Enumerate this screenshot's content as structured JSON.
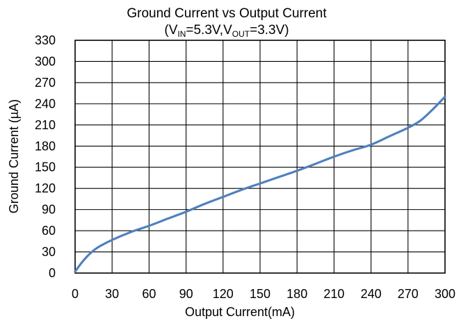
{
  "chart_data": {
    "type": "line",
    "title": "Ground Current vs Output Current",
    "subtitle": {
      "open": "(V",
      "vin_sub": "IN",
      "mid": "=5.3V,V",
      "vout_sub": "OUT",
      "close": "=3.3V)"
    },
    "xlabel": "Output Current(mA)",
    "ylabel": "Ground Current (µA)",
    "xlim": [
      0,
      300
    ],
    "ylim": [
      0,
      330
    ],
    "xticks": [
      "0",
      "30",
      "60",
      "90",
      "120",
      "150",
      "180",
      "210",
      "240",
      "270",
      "300"
    ],
    "yticks": [
      "0",
      "30",
      "60",
      "90",
      "120",
      "150",
      "180",
      "210",
      "240",
      "270",
      "300",
      "330"
    ],
    "grid": true,
    "series": [
      {
        "color": "#4f81bd",
        "x": [
          0,
          5,
          10,
          15,
          20,
          30,
          45,
          60,
          75,
          90,
          105,
          120,
          135,
          150,
          165,
          180,
          195,
          210,
          225,
          240,
          255,
          270,
          280,
          290,
          300
        ],
        "y": [
          2,
          14,
          24,
          32,
          38,
          47,
          58,
          67,
          77,
          87,
          98,
          108,
          118,
          127,
          136,
          145,
          155,
          165,
          174,
          182,
          194,
          206,
          216,
          232,
          250
        ]
      }
    ]
  }
}
